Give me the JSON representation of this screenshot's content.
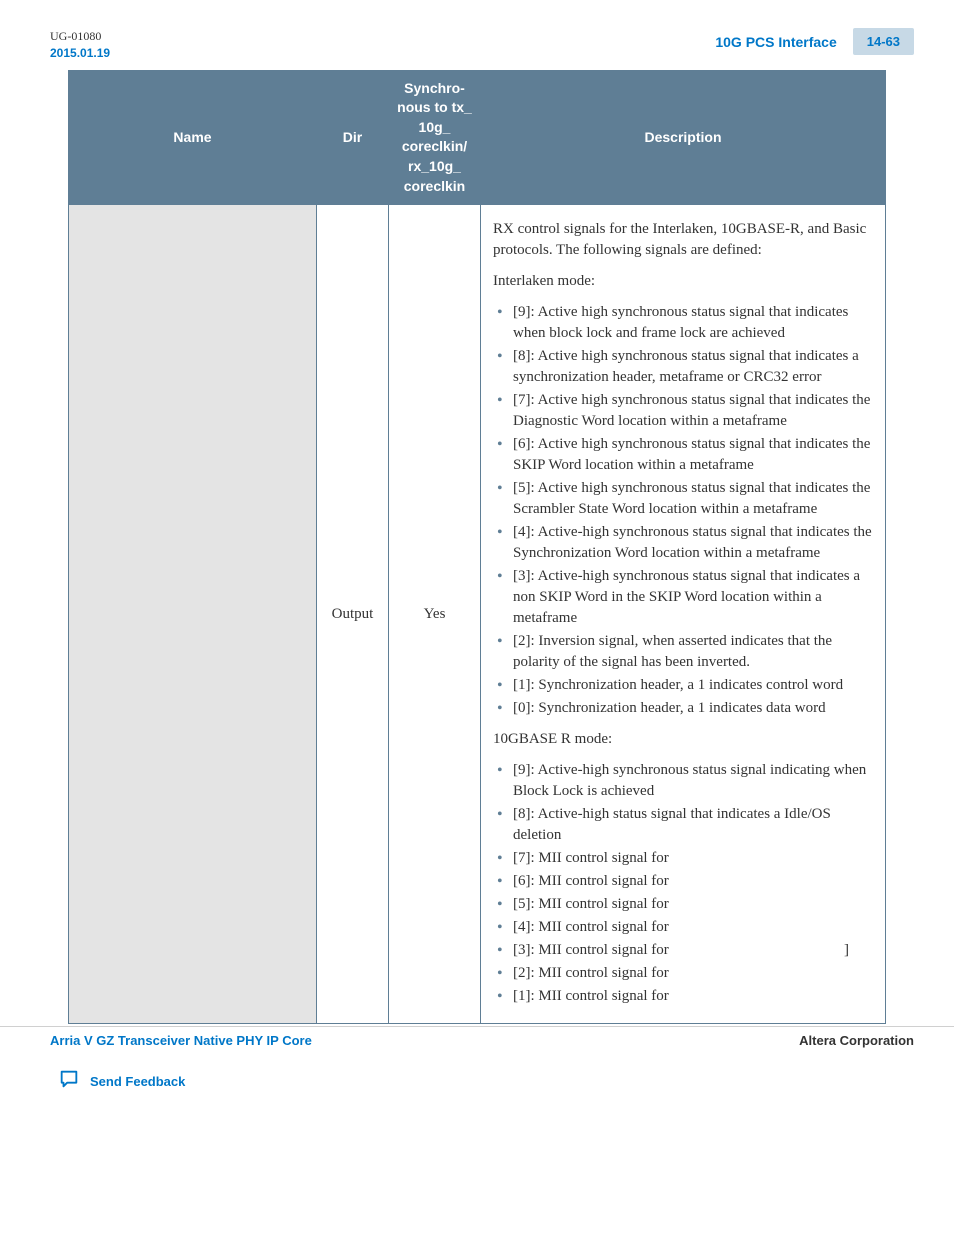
{
  "doc_meta": {
    "doc_id": "UG-01080",
    "date": "2015.01.19",
    "section_title": "10G PCS Interface",
    "page_label": "14-63"
  },
  "table": {
    "headers": {
      "name": "Name",
      "dir": "Dir",
      "sync": "Synchro-nous to tx_10g_coreclkin/rx_10g_coreclkin",
      "desc": "Description"
    },
    "row": {
      "dir": "Output",
      "sync": "Yes",
      "desc_intro": "RX control signals for the Interlaken, 10GBASE-R, and Basic protocols. The following signals are defined:",
      "interlaken_label": "Interlaken mode:",
      "interlaken_bullets": [
        "[9]: Active high synchronous status signal that indicates when block lock and frame lock are achieved",
        "[8]: Active high synchronous status signal that indicates a synchronization header, metaframe or CRC32 error",
        "[7]: Active high synchronous status signal that indicates the Diagnostic Word location within a metaframe",
        "[6]: Active high synchronous status signal that indicates the SKIP Word location within a metaframe",
        "[5]: Active high synchronous status signal that indicates the Scrambler State Word location within a metaframe",
        "[4]: Active-high synchronous status signal that indicates the Synchronization Word location within a metaframe",
        "[3]: Active-high synchronous status signal that indicates a non SKIP Word in the SKIP Word location within a metaframe",
        "[2]: Inversion signal, when asserted indicates that the polarity of the signal has been inverted.",
        "[1]: Synchronization header, a 1 indicates control word",
        "[0]: Synchronization header, a 1 indicates data word"
      ],
      "tenbase_label": "10GBASE R mode:",
      "tenbase_bullets": [
        "[9]: Active-high synchronous status signal indicating when Block Lock is achieved",
        "[8]: Active-high status signal that indicates a Idle/OS deletion",
        "[7]: MII control signal for",
        "[6]: MII control signal for",
        "[5]: MII control signal for",
        "[4]: MII control signal for",
        "[3]: MII control signal for",
        "[2]: MII control signal for",
        "[1]: MII control signal for"
      ],
      "tenbase_bracket_idx": 6,
      "tenbase_bracket": "]"
    }
  },
  "footer": {
    "left": "Arria V GZ Transceiver Native PHY IP Core",
    "right": "Altera Corporation",
    "feedback": "Send Feedback"
  },
  "colors": {
    "header_bg": "#5f7e95",
    "link_color": "#0077c8",
    "badge_bg": "#c7d9e6",
    "empty_cell_bg": "#e4e4e4"
  }
}
